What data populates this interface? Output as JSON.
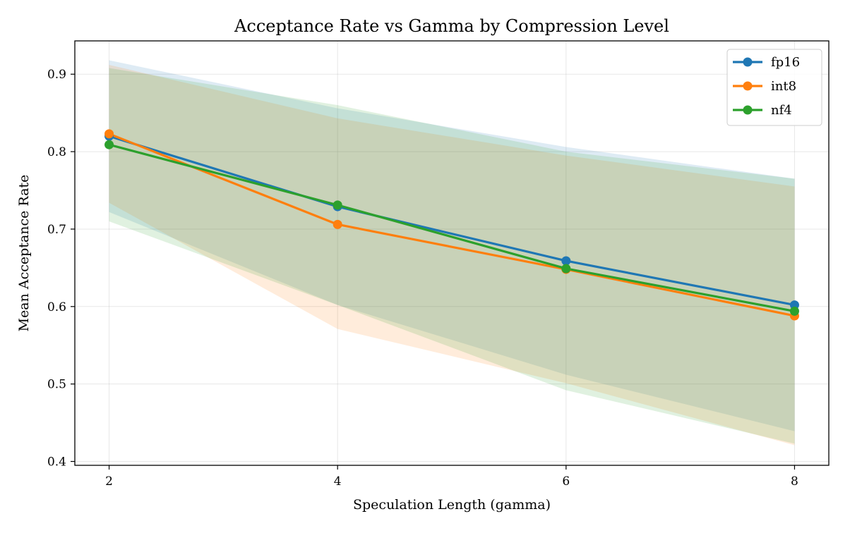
{
  "chart_data": {
    "type": "line",
    "title": "Acceptance Rate vs Gamma by Compression Level",
    "xlabel": "Speculation Length (gamma)",
    "ylabel": "Mean Acceptance Rate",
    "x": [
      2,
      4,
      6,
      8
    ],
    "xticks": [
      "2",
      "4",
      "6",
      "8"
    ],
    "yticks": [
      "0.4",
      "0.5",
      "0.6",
      "0.7",
      "0.8",
      "0.9"
    ],
    "xlim": [
      1.7,
      8.3
    ],
    "ylim": [
      0.395,
      0.943
    ],
    "grid": true,
    "legend_position": "top-right",
    "series": [
      {
        "name": "fp16",
        "color": "#1f77b4",
        "values": [
          0.82,
          0.729,
          0.659,
          0.602
        ],
        "band_upper": [
          0.918,
          0.856,
          0.806,
          0.765
        ],
        "band_lower": [
          0.722,
          0.602,
          0.512,
          0.439
        ]
      },
      {
        "name": "int8",
        "color": "#ff7f0e",
        "values": [
          0.823,
          0.706,
          0.648,
          0.588
        ],
        "band_upper": [
          0.912,
          0.843,
          0.795,
          0.755
        ],
        "band_lower": [
          0.734,
          0.571,
          0.501,
          0.421
        ]
      },
      {
        "name": "nf4",
        "color": "#2ca02c",
        "values": [
          0.809,
          0.731,
          0.649,
          0.594
        ],
        "band_upper": [
          0.908,
          0.86,
          0.8,
          0.765
        ],
        "band_lower": [
          0.71,
          0.602,
          0.492,
          0.423
        ]
      }
    ]
  }
}
